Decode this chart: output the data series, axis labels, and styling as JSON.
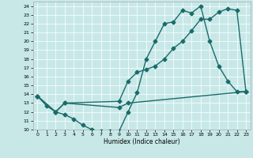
{
  "xlabel": "Humidex (Indice chaleur)",
  "xlim": [
    -0.5,
    23.5
  ],
  "ylim": [
    10,
    24.5
  ],
  "yticks": [
    10,
    11,
    12,
    13,
    14,
    15,
    16,
    17,
    18,
    19,
    20,
    21,
    22,
    23,
    24
  ],
  "xticks": [
    0,
    1,
    2,
    3,
    4,
    5,
    6,
    7,
    8,
    9,
    10,
    11,
    12,
    13,
    14,
    15,
    16,
    17,
    18,
    19,
    20,
    21,
    22,
    23
  ],
  "bg_color": "#c8e8e8",
  "grid_color": "#ffffff",
  "line_color": "#1a6b6b",
  "line1_x": [
    0,
    1,
    2,
    3,
    4,
    5,
    6,
    7,
    8,
    9,
    10,
    11,
    12,
    13,
    14,
    15,
    16,
    17,
    18,
    19,
    20,
    21,
    22,
    23
  ],
  "line1_y": [
    13.8,
    12.7,
    12.0,
    11.7,
    11.2,
    10.5,
    10.0,
    9.8,
    9.8,
    9.8,
    12.0,
    14.2,
    18.0,
    20.0,
    22.0,
    22.2,
    23.5,
    23.2,
    24.0,
    20.0,
    17.2,
    15.5,
    14.3,
    14.3
  ],
  "line2_x": [
    0,
    2,
    3,
    9,
    10,
    11,
    12,
    13,
    14,
    15,
    16,
    17,
    18,
    19,
    20,
    21,
    22,
    23
  ],
  "line2_y": [
    13.8,
    12.0,
    13.0,
    13.2,
    15.5,
    16.5,
    16.8,
    17.2,
    18.0,
    19.2,
    20.0,
    21.2,
    22.5,
    22.5,
    23.3,
    23.7,
    23.5,
    14.3
  ],
  "line3_x": [
    0,
    2,
    3,
    9,
    10,
    23
  ],
  "line3_y": [
    13.8,
    12.0,
    13.0,
    12.5,
    13.0,
    14.3
  ],
  "marker_size": 2.5,
  "line_width": 1.0
}
